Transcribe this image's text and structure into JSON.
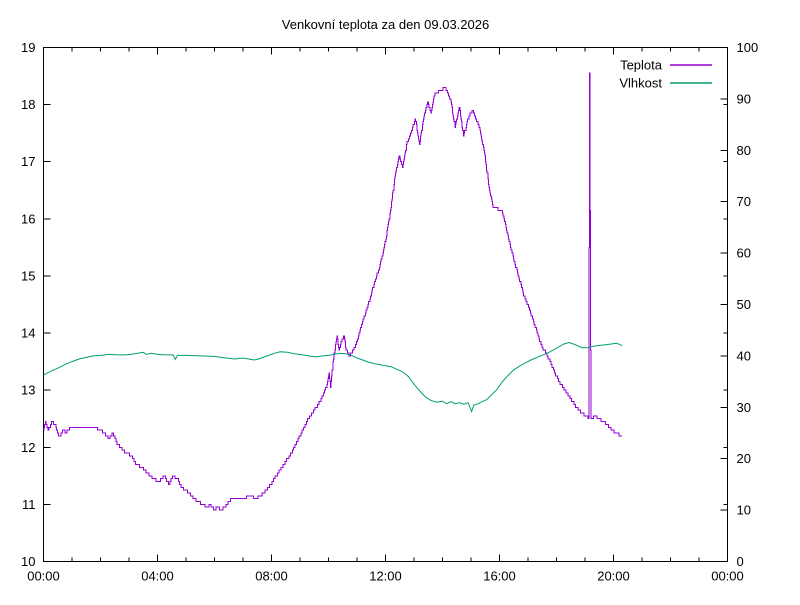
{
  "chart_data": {
    "type": "line",
    "title": "Venkovní teplota za den 09.03.2026",
    "background": "#ffffff",
    "axis_color": "#000000",
    "legend": {
      "position": "top-right",
      "border": false
    },
    "x_axis": {
      "unit": "time-of-day",
      "range_hours": [
        0,
        24
      ],
      "major_tick_hours": [
        0,
        4,
        8,
        12,
        16,
        20,
        24
      ],
      "major_tick_labels": [
        "00:00",
        "04:00",
        "08:00",
        "12:00",
        "16:00",
        "20:00",
        "00:00"
      ],
      "minor_tick_interval_hours": 1
    },
    "y_left_axis": {
      "unit": "°C",
      "range": [
        10,
        19
      ],
      "ticks": [
        10,
        11,
        12,
        13,
        14,
        15,
        16,
        17,
        18,
        19
      ]
    },
    "y_right_axis": {
      "unit": "%",
      "range": [
        0,
        100
      ],
      "ticks": [
        0,
        10,
        20,
        30,
        40,
        50,
        60,
        70,
        80,
        90,
        100
      ]
    },
    "series": [
      {
        "name": "Teplota",
        "axis": "left",
        "color": "#9400d3",
        "style": "steps",
        "quantize": 0.05,
        "points": [
          [
            0.0,
            12.3
          ],
          [
            0.08,
            12.45
          ],
          [
            0.17,
            12.3
          ],
          [
            0.3,
            12.45
          ],
          [
            0.42,
            12.4
          ],
          [
            0.5,
            12.25
          ],
          [
            0.58,
            12.2
          ],
          [
            0.7,
            12.3
          ],
          [
            0.8,
            12.25
          ],
          [
            0.95,
            12.35
          ],
          [
            1.5,
            12.35
          ],
          [
            1.8,
            12.35
          ],
          [
            2.0,
            12.3
          ],
          [
            2.15,
            12.25
          ],
          [
            2.3,
            12.15
          ],
          [
            2.45,
            12.25
          ],
          [
            2.55,
            12.1
          ],
          [
            2.7,
            12.0
          ],
          [
            2.9,
            11.9
          ],
          [
            3.1,
            11.85
          ],
          [
            3.25,
            11.7
          ],
          [
            3.45,
            11.65
          ],
          [
            3.65,
            11.55
          ],
          [
            3.85,
            11.45
          ],
          [
            4.05,
            11.4
          ],
          [
            4.25,
            11.5
          ],
          [
            4.4,
            11.35
          ],
          [
            4.55,
            11.5
          ],
          [
            4.7,
            11.45
          ],
          [
            4.85,
            11.3
          ],
          [
            5.0,
            11.25
          ],
          [
            5.2,
            11.15
          ],
          [
            5.4,
            11.05
          ],
          [
            5.6,
            11.0
          ],
          [
            5.75,
            10.95
          ],
          [
            5.85,
            11.0
          ],
          [
            6.0,
            10.9
          ],
          [
            6.1,
            10.95
          ],
          [
            6.25,
            10.9
          ],
          [
            6.45,
            11.0
          ],
          [
            6.6,
            11.1
          ],
          [
            7.0,
            11.1
          ],
          [
            7.25,
            11.15
          ],
          [
            7.45,
            11.1
          ],
          [
            7.6,
            11.15
          ],
          [
            7.75,
            11.2
          ],
          [
            7.9,
            11.3
          ],
          [
            8.1,
            11.45
          ],
          [
            8.3,
            11.6
          ],
          [
            8.5,
            11.75
          ],
          [
            8.7,
            11.9
          ],
          [
            8.9,
            12.1
          ],
          [
            9.1,
            12.3
          ],
          [
            9.3,
            12.5
          ],
          [
            9.5,
            12.65
          ],
          [
            9.7,
            12.8
          ],
          [
            9.85,
            12.95
          ],
          [
            9.95,
            13.1
          ],
          [
            10.02,
            13.3
          ],
          [
            10.08,
            13.05
          ],
          [
            10.17,
            13.5
          ],
          [
            10.25,
            13.8
          ],
          [
            10.3,
            13.95
          ],
          [
            10.37,
            13.7
          ],
          [
            10.45,
            13.85
          ],
          [
            10.55,
            13.95
          ],
          [
            10.63,
            13.7
          ],
          [
            10.75,
            13.6
          ],
          [
            10.87,
            13.7
          ],
          [
            11.0,
            13.85
          ],
          [
            11.2,
            14.2
          ],
          [
            11.4,
            14.5
          ],
          [
            11.6,
            14.85
          ],
          [
            11.8,
            15.15
          ],
          [
            12.0,
            15.6
          ],
          [
            12.2,
            16.2
          ],
          [
            12.35,
            16.8
          ],
          [
            12.5,
            17.1
          ],
          [
            12.6,
            16.9
          ],
          [
            12.75,
            17.3
          ],
          [
            12.9,
            17.5
          ],
          [
            13.05,
            17.75
          ],
          [
            13.2,
            17.3
          ],
          [
            13.35,
            17.8
          ],
          [
            13.5,
            18.05
          ],
          [
            13.6,
            17.85
          ],
          [
            13.75,
            18.2
          ],
          [
            13.95,
            18.25
          ],
          [
            14.1,
            18.3
          ],
          [
            14.3,
            18.05
          ],
          [
            14.45,
            17.6
          ],
          [
            14.6,
            17.95
          ],
          [
            14.75,
            17.45
          ],
          [
            14.9,
            17.75
          ],
          [
            15.05,
            17.9
          ],
          [
            15.3,
            17.6
          ],
          [
            15.5,
            17.1
          ],
          [
            15.65,
            16.5
          ],
          [
            15.8,
            16.2
          ],
          [
            16.1,
            16.15
          ],
          [
            16.3,
            15.7
          ],
          [
            16.5,
            15.3
          ],
          [
            16.7,
            14.95
          ],
          [
            16.9,
            14.6
          ],
          [
            17.1,
            14.35
          ],
          [
            17.3,
            14.05
          ],
          [
            17.5,
            13.75
          ],
          [
            17.7,
            13.6
          ],
          [
            17.9,
            13.35
          ],
          [
            18.1,
            13.15
          ],
          [
            18.3,
            13.0
          ],
          [
            18.5,
            12.85
          ],
          [
            18.7,
            12.7
          ],
          [
            18.9,
            12.6
          ],
          [
            19.05,
            12.55
          ],
          [
            19.13,
            12.5
          ],
          [
            19.17,
            18.55
          ],
          [
            19.22,
            12.5
          ],
          [
            19.35,
            12.55
          ],
          [
            19.5,
            12.5
          ],
          [
            19.65,
            12.45
          ],
          [
            19.8,
            12.4
          ],
          [
            19.95,
            12.3
          ],
          [
            20.1,
            12.25
          ],
          [
            20.3,
            12.2
          ]
        ]
      },
      {
        "name": "Vlhkost",
        "axis": "right",
        "color": "#009e73",
        "style": "linear",
        "points": [
          [
            0.0,
            36.3
          ],
          [
            0.25,
            37.0
          ],
          [
            0.5,
            37.6
          ],
          [
            0.75,
            38.3
          ],
          [
            1.0,
            38.9
          ],
          [
            1.25,
            39.4
          ],
          [
            1.5,
            39.7
          ],
          [
            1.75,
            40.0
          ],
          [
            2.0,
            40.1
          ],
          [
            2.3,
            40.3
          ],
          [
            2.6,
            40.2
          ],
          [
            2.9,
            40.2
          ],
          [
            3.2,
            40.4
          ],
          [
            3.5,
            40.7
          ],
          [
            3.6,
            40.3
          ],
          [
            3.8,
            40.5
          ],
          [
            4.0,
            40.3
          ],
          [
            4.3,
            40.2
          ],
          [
            4.55,
            40.2
          ],
          [
            4.62,
            39.3
          ],
          [
            4.7,
            40.1
          ],
          [
            5.0,
            40.1
          ],
          [
            5.5,
            40.0
          ],
          [
            6.0,
            39.9
          ],
          [
            6.4,
            39.6
          ],
          [
            6.7,
            39.4
          ],
          [
            7.0,
            39.6
          ],
          [
            7.2,
            39.4
          ],
          [
            7.4,
            39.2
          ],
          [
            7.6,
            39.5
          ],
          [
            7.9,
            40.1
          ],
          [
            8.1,
            40.5
          ],
          [
            8.3,
            40.8
          ],
          [
            8.55,
            40.7
          ],
          [
            8.8,
            40.4
          ],
          [
            9.0,
            40.3
          ],
          [
            9.2,
            40.1
          ],
          [
            9.4,
            39.9
          ],
          [
            9.6,
            39.8
          ],
          [
            9.8,
            40.0
          ],
          [
            10.0,
            40.1
          ],
          [
            10.2,
            40.3
          ],
          [
            10.4,
            40.5
          ],
          [
            10.6,
            40.4
          ],
          [
            10.8,
            40.1
          ],
          [
            11.0,
            39.6
          ],
          [
            11.2,
            39.2
          ],
          [
            11.4,
            38.8
          ],
          [
            11.6,
            38.5
          ],
          [
            11.8,
            38.3
          ],
          [
            12.0,
            38.1
          ],
          [
            12.2,
            37.9
          ],
          [
            12.4,
            37.4
          ],
          [
            12.6,
            36.9
          ],
          [
            12.8,
            36.0
          ],
          [
            13.0,
            34.5
          ],
          [
            13.2,
            33.2
          ],
          [
            13.4,
            32.0
          ],
          [
            13.6,
            31.3
          ],
          [
            13.8,
            31.0
          ],
          [
            14.0,
            31.2
          ],
          [
            14.15,
            30.7
          ],
          [
            14.3,
            31.1
          ],
          [
            14.45,
            30.7
          ],
          [
            14.6,
            30.9
          ],
          [
            14.75,
            30.6
          ],
          [
            14.9,
            30.9
          ],
          [
            15.02,
            29.2
          ],
          [
            15.1,
            30.4
          ],
          [
            15.25,
            30.7
          ],
          [
            15.4,
            31.1
          ],
          [
            15.55,
            31.5
          ],
          [
            15.7,
            32.3
          ],
          [
            15.9,
            33.4
          ],
          [
            16.1,
            35.0
          ],
          [
            16.3,
            36.2
          ],
          [
            16.5,
            37.3
          ],
          [
            16.7,
            38.0
          ],
          [
            16.9,
            38.6
          ],
          [
            17.1,
            39.2
          ],
          [
            17.4,
            39.9
          ],
          [
            17.7,
            40.6
          ],
          [
            18.0,
            41.5
          ],
          [
            18.25,
            42.3
          ],
          [
            18.45,
            42.6
          ],
          [
            18.65,
            42.2
          ],
          [
            18.9,
            41.6
          ],
          [
            19.1,
            41.6
          ],
          [
            19.3,
            41.9
          ],
          [
            19.6,
            42.1
          ],
          [
            19.9,
            42.3
          ],
          [
            20.1,
            42.5
          ],
          [
            20.3,
            42.0
          ]
        ]
      }
    ]
  }
}
